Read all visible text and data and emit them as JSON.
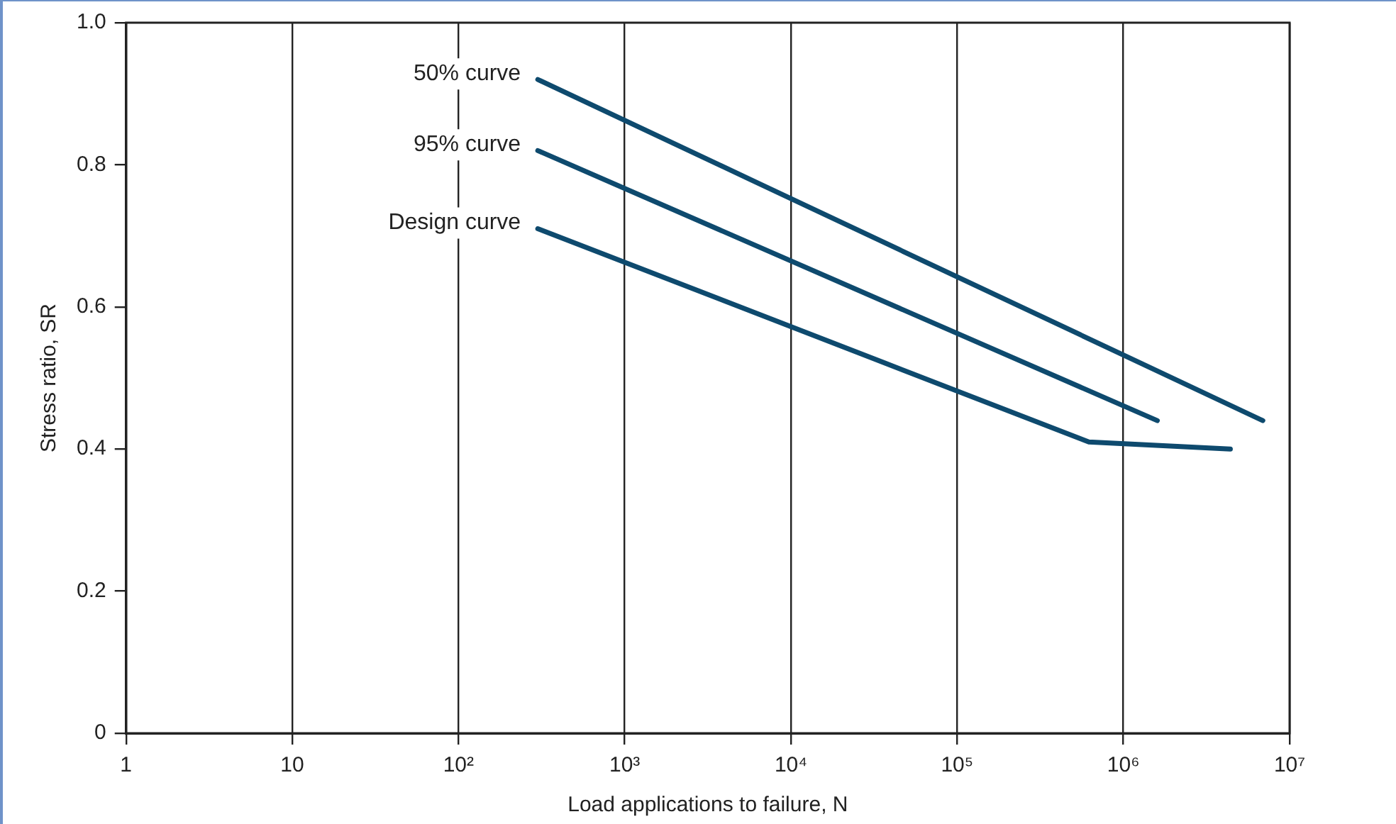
{
  "chart_data": {
    "type": "line",
    "xlabel": "Load applications to failure, N",
    "ylabel": "Stress ratio, SR",
    "log": "x",
    "xlim": [
      1,
      10000000
    ],
    "xticks": [
      1,
      10,
      {
        "value": 100,
        "label": "10²"
      },
      {
        "value": 1000,
        "label": "10³"
      },
      {
        "value": 10000,
        "label": "10⁴"
      },
      {
        "value": 100000,
        "label": "10⁵"
      },
      {
        "value": 1000000,
        "label": "10⁶"
      },
      {
        "value": 10000000,
        "label": "10⁷"
      }
    ],
    "ylim": [
      0,
      1
    ],
    "yticks": [
      0,
      0.2,
      0.4,
      0.6,
      0.8,
      {
        "value": 1,
        "label": "1.0"
      }
    ],
    "grid": "x",
    "legend": false,
    "marker": "none",
    "line_style": "solid",
    "series": [
      {
        "name": "50% curve",
        "color": "#0e4a6e",
        "x": [
          300,
          6900000
        ],
        "values": [
          0.92,
          0.44
        ]
      },
      {
        "name": "95% curve",
        "color": "#0e4a6e",
        "x": [
          300,
          1600000
        ],
        "values": [
          0.82,
          0.44
        ]
      },
      {
        "name": "Design curve",
        "color": "#0e4a6e",
        "x": [
          300,
          620000,
          4400000
        ],
        "values": [
          0.71,
          0.41,
          0.4
        ]
      }
    ]
  }
}
